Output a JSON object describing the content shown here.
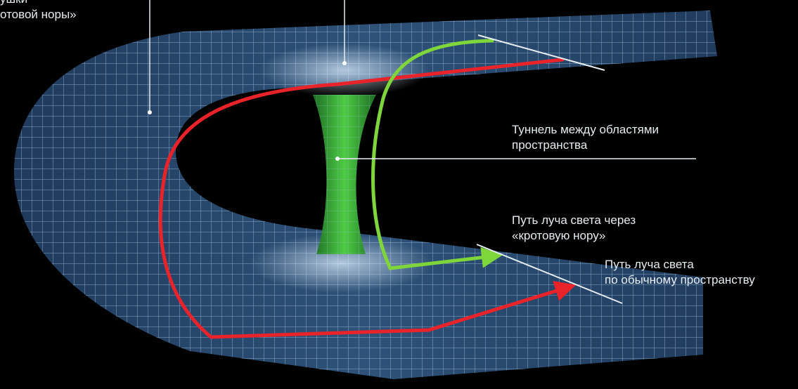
{
  "labels": {
    "top_left": {
      "line1": "ушки",
      "line2": "отовой норы»"
    },
    "tunnel": {
      "line1": "Туннель между областями",
      "line2": "пространства"
    },
    "wormhole_path": {
      "line1": "Путь луча света через",
      "line2": "«кротовую нору»"
    },
    "normal_path": {
      "line1": "Путь луча света",
      "line2": "по обычному пространству"
    }
  },
  "colors": {
    "background": "#000000",
    "sheet": "#2a4a6e",
    "grid": "#9fc0dc",
    "tunnel": "#3aa83a",
    "red_path": "#e8232a",
    "green_path": "#7ed63a",
    "leader": "#e6edf1"
  }
}
